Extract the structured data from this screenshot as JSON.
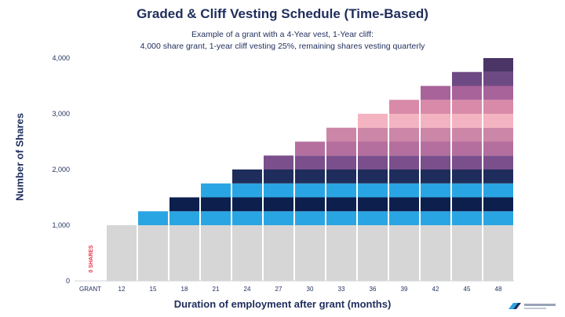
{
  "chart_data": {
    "type": "bar",
    "title": "Graded & Cliff Vesting Schedule (Time-Based)",
    "subtitle_lines": [
      "Example of a grant with a 4-Year vest, 1-Year cliff:",
      "4,000 share grant, 1-year cliff vesting 25%, remaining shares vesting quarterly"
    ],
    "xlabel": "Duration of employment after grant (months)",
    "ylabel": "Number of Shares",
    "categories": [
      "GRANT",
      "12",
      "15",
      "18",
      "21",
      "24",
      "27",
      "30",
      "33",
      "36",
      "39",
      "42",
      "45",
      "48"
    ],
    "values": [
      0,
      1000,
      1250,
      1500,
      1750,
      2000,
      2250,
      2500,
      2750,
      3000,
      3250,
      3500,
      3750,
      4000
    ],
    "yticks": [
      "0",
      "1,000",
      "2,000",
      "3,000",
      "4,000"
    ],
    "ylim": [
      0,
      4000
    ],
    "zero_annotation": "0 SHARES",
    "cliff_color": "#d6d6d6",
    "segment_colors": [
      "#2aa5e3",
      "#0d1f4d",
      "#2aa5e3",
      "#1f2d5c",
      "#7b4e8c",
      "#b56f9e",
      "#cc86a8",
      "#f4b3c0",
      "#d88aa8",
      "#a8639a",
      "#6e4a84",
      "#4a3566"
    ],
    "annotation_color": "#e8334a",
    "grid": false,
    "legend": "none"
  }
}
